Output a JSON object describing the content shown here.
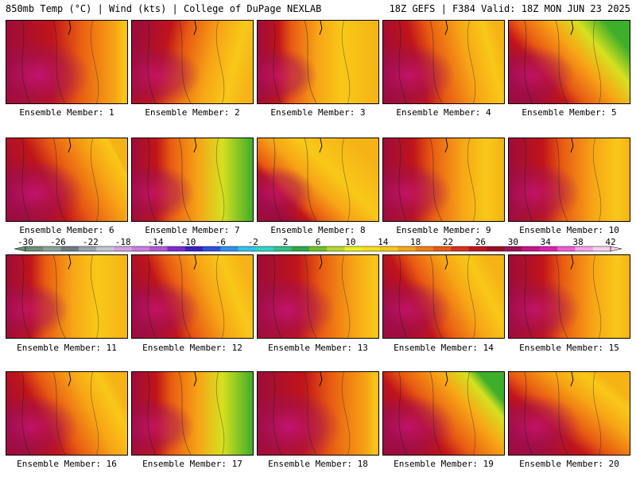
{
  "header": {
    "left": "850mb Temp (°C) | Wind (kts) | College of DuPage NEXLAB",
    "right": "18Z GEFS | F384 Valid: 18Z MON JUN 23 2025"
  },
  "colorbar": {
    "labels": [
      "-30",
      "-26",
      "-22",
      "-18",
      "-14",
      "-10",
      "-6",
      "-2",
      "2",
      "6",
      "10",
      "14",
      "18",
      "22",
      "26",
      "30",
      "34",
      "38",
      "42"
    ],
    "colors": [
      "#6f8f78",
      "#8ea39a",
      "#6f7a84",
      "#9aa3b0",
      "#c2c7d6",
      "#cfa2e0",
      "#c97fe0",
      "#b15ad6",
      "#7c2ad0",
      "#3a1fc4",
      "#2d4fe0",
      "#2f8ff0",
      "#30c4f0",
      "#2fd6c8",
      "#2ec48a",
      "#2ea84a",
      "#6fc02a",
      "#b6d82a",
      "#eaf020",
      "#f7e01a",
      "#f8c818",
      "#f7a516",
      "#f07e14",
      "#e85a12",
      "#d8301a",
      "#c0141a",
      "#9e0c20",
      "#a0105a",
      "#c81488",
      "#e020b0",
      "#f05cd0",
      "#f8a0e8",
      "#fad0f2"
    ]
  },
  "members": [
    {
      "label": "Ensemble Member: 1",
      "w": 0.75,
      "grad": 0.4,
      "ang": 0
    },
    {
      "label": "Ensemble Member: 2",
      "w": 0.5,
      "grad": 0.3,
      "ang": 10
    },
    {
      "label": "Ensemble Member: 3",
      "w": 0.35,
      "grad": 0.3,
      "ang": 0
    },
    {
      "label": "Ensemble Member: 4",
      "w": 0.55,
      "grad": 0.3,
      "ang": -10
    },
    {
      "label": "Ensemble Member: 5",
      "w": 0.45,
      "grad": 0.8,
      "ang": -30
    },
    {
      "label": "Ensemble Member: 6",
      "w": 0.65,
      "grad": 0.5,
      "ang": -20
    },
    {
      "label": "Ensemble Member: 7",
      "w": 0.4,
      "grad": 0.7,
      "ang": 0
    },
    {
      "label": "Ensemble Member: 8",
      "w": 0.3,
      "grad": 0.5,
      "ang": -35
    },
    {
      "label": "Ensemble Member: 9",
      "w": 0.5,
      "grad": 0.3,
      "ang": 0
    },
    {
      "label": "Ensemble Member: 10",
      "w": 0.55,
      "grad": 0.4,
      "ang": 0
    },
    {
      "label": "Ensemble Member: 11",
      "w": 0.4,
      "grad": 0.2,
      "ang": 0
    },
    {
      "label": "Ensemble Member: 12",
      "w": 0.5,
      "grad": 0.3,
      "ang": -15
    },
    {
      "label": "Ensemble Member: 13",
      "w": 0.65,
      "grad": 0.5,
      "ang": 0
    },
    {
      "label": "Ensemble Member: 14",
      "w": 0.5,
      "grad": 0.3,
      "ang": -20
    },
    {
      "label": "Ensemble Member: 15",
      "w": 0.55,
      "grad": 0.4,
      "ang": 0
    },
    {
      "label": "Ensemble Member: 16",
      "w": 0.55,
      "grad": 0.4,
      "ang": -20
    },
    {
      "label": "Ensemble Member: 17",
      "w": 0.4,
      "grad": 0.7,
      "ang": 0
    },
    {
      "label": "Ensemble Member: 18",
      "w": 0.75,
      "grad": 0.4,
      "ang": 0
    },
    {
      "label": "Ensemble Member: 19",
      "w": 0.55,
      "grad": 0.7,
      "ang": -30
    },
    {
      "label": "Ensemble Member: 20",
      "w": 0.55,
      "grad": 0.6,
      "ang": -40
    }
  ]
}
